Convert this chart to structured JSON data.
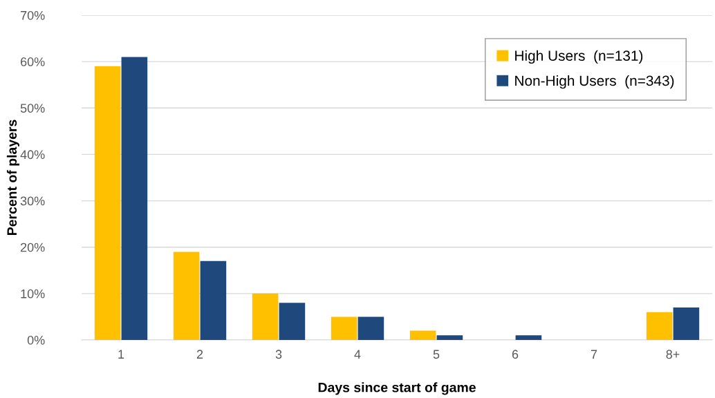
{
  "chart_data": {
    "type": "bar",
    "xlabel": "Days since start of game",
    "ylabel": "Percent of players",
    "categories": [
      "1",
      "2",
      "3",
      "4",
      "5",
      "6",
      "7",
      "8+"
    ],
    "series": [
      {
        "name": "High Users  (n=131)",
        "color": "#ffc000",
        "values": [
          59,
          19,
          10,
          5,
          2,
          0,
          0,
          6
        ]
      },
      {
        "name": "Non-High Users  (n=343)",
        "color": "#1f497d",
        "values": [
          61,
          17,
          8,
          5,
          1,
          1,
          0,
          7
        ]
      }
    ],
    "ylim": [
      0,
      70
    ],
    "yticks": [
      {
        "value": 0,
        "label": "0%"
      },
      {
        "value": 10,
        "label": "10%"
      },
      {
        "value": 20,
        "label": "20%"
      },
      {
        "value": 30,
        "label": "30%"
      },
      {
        "value": 40,
        "label": "40%"
      },
      {
        "value": 50,
        "label": "50%"
      },
      {
        "value": 60,
        "label": "60%"
      },
      {
        "value": 70,
        "label": "70%"
      }
    ],
    "grid": "y",
    "legend": "top right"
  }
}
